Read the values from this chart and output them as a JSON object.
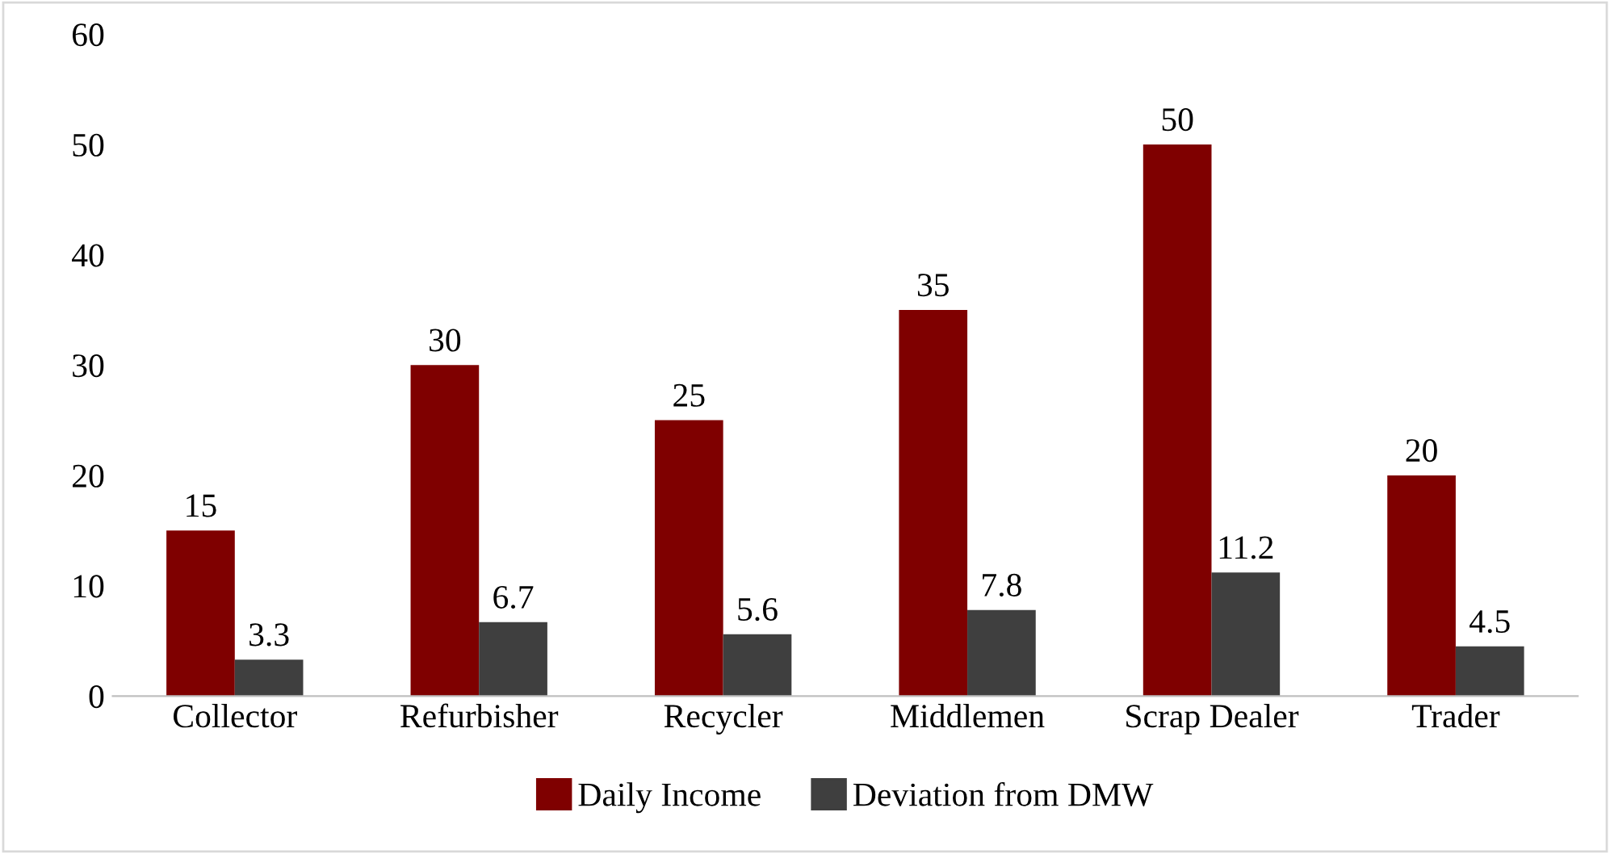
{
  "chart_data": {
    "type": "bar",
    "categories": [
      "Collector",
      "Refurbisher",
      "Recycler",
      "Middlemen",
      "Scrap Dealer",
      "Trader"
    ],
    "series": [
      {
        "name": "Daily Income",
        "color": "#7f0000",
        "values": [
          15,
          30,
          25,
          35,
          50,
          20
        ]
      },
      {
        "name": "Deviation from DMW",
        "color": "#3f3f3f",
        "values": [
          3.3,
          6.7,
          5.6,
          7.8,
          11.2,
          4.5
        ]
      }
    ],
    "ylim": [
      0,
      60
    ],
    "yticks": [
      0,
      10,
      20,
      30,
      40,
      50,
      60
    ],
    "grid": false,
    "legend": "bottom",
    "data_labels": true
  }
}
